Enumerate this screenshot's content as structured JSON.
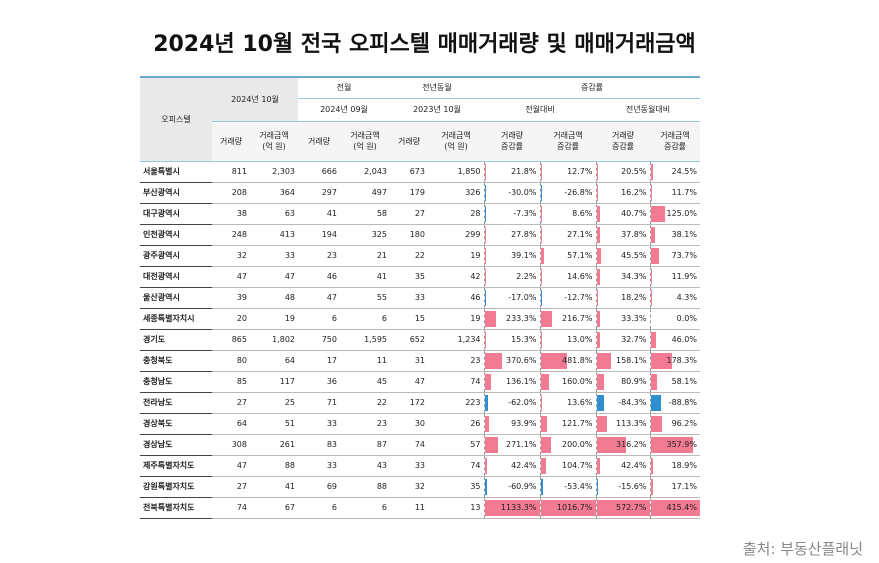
{
  "title": "2024년 10월 전국 오피스텔 매매거래량 및 매매거래금액",
  "source": "출처: 부동산플래닛",
  "table": {
    "header": {
      "region": "오피스텔",
      "current": "2024년 10월",
      "prev_month": "전월",
      "prev_year": "전년동월",
      "change": "증감률",
      "prev_month_date": "2024년 09월",
      "prev_year_date": "2023년 10월",
      "vs_prev_month": "전월대비",
      "vs_prev_year": "전년동월대비",
      "columns": [
        "거래량",
        "거래금액\n(억 원)",
        "거래량",
        "거래금액\n(억 원)",
        "거래량",
        "거래금액\n(억 원)",
        "거래량\n증감률",
        "거래금액\n증감률",
        "거래량\n증감률",
        "거래금액\n증감률"
      ]
    },
    "rows": [
      {
        "name": "서울특별시",
        "counts": [
          "811",
          "2,303",
          "666",
          "2,043",
          "673",
          "1,850"
        ],
        "rates": [
          21.8,
          12.7,
          20.5,
          24.5
        ],
        "rate_labels": [
          "21.8%",
          "12.7%",
          "20.5%",
          "24.5%"
        ]
      },
      {
        "name": "부산광역시",
        "counts": [
          "208",
          "364",
          "297",
          "497",
          "179",
          "326"
        ],
        "rates": [
          -30.0,
          -26.8,
          16.2,
          11.7
        ],
        "rate_labels": [
          "-30.0%",
          "-26.8%",
          "16.2%",
          "11.7%"
        ]
      },
      {
        "name": "대구광역시",
        "counts": [
          "38",
          "63",
          "41",
          "58",
          "27",
          "28"
        ],
        "rates": [
          -7.3,
          8.6,
          40.7,
          125.0
        ],
        "rate_labels": [
          "-7.3%",
          "8.6%",
          "40.7%",
          "125.0%"
        ]
      },
      {
        "name": "인천광역시",
        "counts": [
          "248",
          "413",
          "194",
          "325",
          "180",
          "299"
        ],
        "rates": [
          27.8,
          27.1,
          37.8,
          38.1
        ],
        "rate_labels": [
          "27.8%",
          "27.1%",
          "37.8%",
          "38.1%"
        ]
      },
      {
        "name": "광주광역시",
        "counts": [
          "32",
          "33",
          "23",
          "21",
          "22",
          "19"
        ],
        "rates": [
          39.1,
          57.1,
          45.5,
          73.7
        ],
        "rate_labels": [
          "39.1%",
          "57.1%",
          "45.5%",
          "73.7%"
        ]
      },
      {
        "name": "대전광역시",
        "counts": [
          "47",
          "47",
          "46",
          "41",
          "35",
          "42"
        ],
        "rates": [
          2.2,
          14.6,
          34.3,
          11.9
        ],
        "rate_labels": [
          "2.2%",
          "14.6%",
          "34.3%",
          "11.9%"
        ]
      },
      {
        "name": "울산광역시",
        "counts": [
          "39",
          "48",
          "47",
          "55",
          "33",
          "46"
        ],
        "rates": [
          -17.0,
          -12.7,
          18.2,
          4.3
        ],
        "rate_labels": [
          "-17.0%",
          "-12.7%",
          "18.2%",
          "4.3%"
        ]
      },
      {
        "name": "세종특별자치시",
        "counts": [
          "20",
          "19",
          "6",
          "6",
          "15",
          "19"
        ],
        "rates": [
          233.3,
          216.7,
          33.3,
          0.0
        ],
        "rate_labels": [
          "233.3%",
          "216.7%",
          "33.3%",
          "0.0%"
        ]
      },
      {
        "name": "경기도",
        "counts": [
          "865",
          "1,802",
          "750",
          "1,595",
          "652",
          "1,234"
        ],
        "rates": [
          15.3,
          13.0,
          32.7,
          46.0
        ],
        "rate_labels": [
          "15.3%",
          "13.0%",
          "32.7%",
          "46.0%"
        ]
      },
      {
        "name": "충청북도",
        "counts": [
          "80",
          "64",
          "17",
          "11",
          "31",
          "23"
        ],
        "rates": [
          370.6,
          481.8,
          158.1,
          178.3
        ],
        "rate_labels": [
          "370.6%",
          "481.8%",
          "158.1%",
          "178.3%"
        ]
      },
      {
        "name": "충청남도",
        "counts": [
          "85",
          "117",
          "36",
          "45",
          "47",
          "74"
        ],
        "rates": [
          136.1,
          160.0,
          80.9,
          58.1
        ],
        "rate_labels": [
          "136.1%",
          "160.0%",
          "80.9%",
          "58.1%"
        ]
      },
      {
        "name": "전라남도",
        "counts": [
          "27",
          "25",
          "71",
          "22",
          "172",
          "223"
        ],
        "rates": [
          -62.0,
          13.6,
          -84.3,
          -88.8
        ],
        "rate_labels": [
          "-62.0%",
          "13.6%",
          "-84.3%",
          "-88.8%"
        ]
      },
      {
        "name": "경상북도",
        "counts": [
          "64",
          "51",
          "33",
          "23",
          "30",
          "26"
        ],
        "rates": [
          93.9,
          121.7,
          113.3,
          96.2
        ],
        "rate_labels": [
          "93.9%",
          "121.7%",
          "113.3%",
          "96.2%"
        ]
      },
      {
        "name": "경상남도",
        "counts": [
          "308",
          "261",
          "83",
          "87",
          "74",
          "57"
        ],
        "rates": [
          271.1,
          200.0,
          316.2,
          357.9
        ],
        "rate_labels": [
          "271.1%",
          "200.0%",
          "316.2%",
          "357.9%"
        ]
      },
      {
        "name": "제주특별자치도",
        "counts": [
          "47",
          "88",
          "33",
          "43",
          "33",
          "74"
        ],
        "rates": [
          42.4,
          104.7,
          42.4,
          18.9
        ],
        "rate_labels": [
          "42.4%",
          "104.7%",
          "42.4%",
          "18.9%"
        ]
      },
      {
        "name": "강원특별자치도",
        "counts": [
          "27",
          "41",
          "69",
          "88",
          "32",
          "35"
        ],
        "rates": [
          -60.9,
          -53.4,
          -15.6,
          17.1
        ],
        "rate_labels": [
          "-60.9%",
          "-53.4%",
          "-15.6%",
          "17.1%"
        ]
      },
      {
        "name": "전북특별자치도",
        "counts": [
          "74",
          "67",
          "6",
          "6",
          "11",
          "13"
        ],
        "rates": [
          1133.3,
          1016.7,
          572.7,
          415.4
        ],
        "rate_labels": [
          "1133.3%",
          "1016.7%",
          "572.7%",
          "415.4%"
        ]
      }
    ]
  }
}
